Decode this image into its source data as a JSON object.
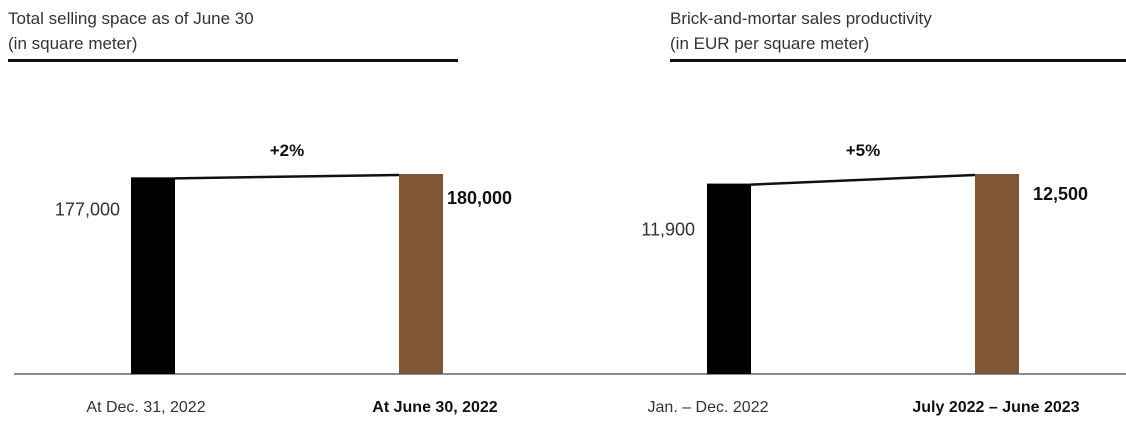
{
  "chart_data": [
    {
      "type": "bar",
      "title": "Total selling space as of June 30",
      "subtitle": "(in square meter)",
      "categories": [
        "At Dec. 31, 2022",
        "At June 30, 2022"
      ],
      "values": [
        177000,
        180000
      ],
      "value_labels": [
        "177,000",
        "180,000"
      ],
      "change_label": "+2%",
      "colors": [
        "#000000",
        "#7f5636"
      ]
    },
    {
      "type": "bar",
      "title": "Brick-and-mortar sales productivity",
      "subtitle": "(in EUR per square meter)",
      "categories": [
        "Jan. – Dec. 2022",
        "July 2022 – June 2023"
      ],
      "values": [
        11900,
        12500
      ],
      "value_labels": [
        "11,900",
        "12,500"
      ],
      "change_label": "+5%",
      "colors": [
        "#000000",
        "#7f5636"
      ]
    }
  ]
}
